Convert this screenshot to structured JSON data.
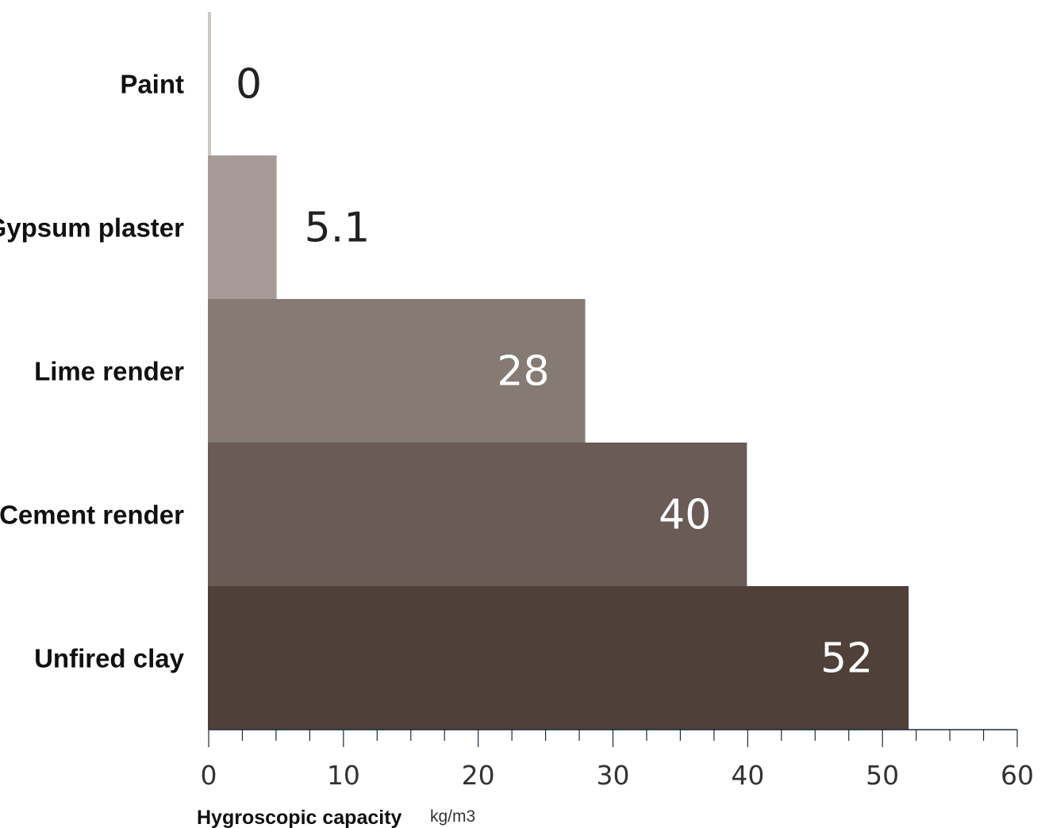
{
  "chart_data": {
    "type": "bar",
    "orientation": "horizontal",
    "categories": [
      "Paint",
      "Gypsum plaster",
      "Lime render",
      "Cement render",
      "Unfired clay"
    ],
    "values": [
      0,
      5.1,
      28,
      40,
      52
    ],
    "value_labels": [
      "0",
      "5.1",
      "28",
      "40",
      "52"
    ],
    "bar_colors": [
      "#cfc8c3",
      "#a69b97",
      "#857a74",
      "#6a5b56",
      "#4f4039"
    ],
    "xlabel": "Hygroscopic capacity",
    "xunit": "kg/m3",
    "xlim": [
      0,
      60
    ],
    "xticks": [
      0,
      10,
      20,
      30,
      40,
      50,
      60
    ],
    "xtick_labels": [
      "0",
      "10",
      "20",
      "30",
      "40",
      "50",
      "60"
    ],
    "minor_tick_step": 2.5,
    "grid": false,
    "legend": "none"
  }
}
